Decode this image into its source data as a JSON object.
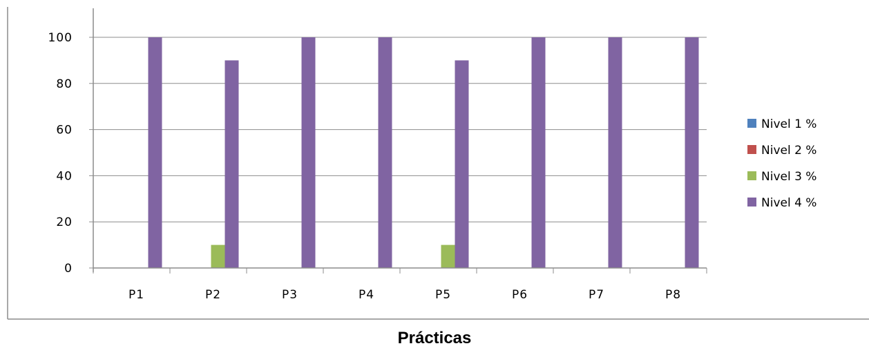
{
  "chart_data": {
    "type": "bar",
    "title": "",
    "xlabel": "Prácticas",
    "ylabel": "",
    "categories": [
      "P1",
      "P2",
      "P3",
      "P4",
      "P5",
      "P6",
      "P7",
      "P8"
    ],
    "series": [
      {
        "name": "Nivel 1 %",
        "color": "#4F81BD",
        "values": [
          0,
          0,
          0,
          0,
          0,
          0,
          0,
          0
        ]
      },
      {
        "name": "Nivel 2 %",
        "color": "#C0504D",
        "values": [
          0,
          0,
          0,
          0,
          0,
          0,
          0,
          0
        ]
      },
      {
        "name": "Nivel 3 %",
        "color": "#9BBB59",
        "values": [
          0,
          10,
          0,
          0,
          10,
          0,
          0,
          0
        ]
      },
      {
        "name": "Nivel 4 %",
        "color": "#8064A2",
        "values": [
          100,
          90,
          100,
          100,
          90,
          100,
          100,
          100
        ]
      }
    ],
    "ylim": [
      0,
      100
    ],
    "yticks": [
      "0",
      "20",
      "40",
      "60",
      "80",
      "100"
    ],
    "grid": true,
    "legend_position": "right"
  }
}
